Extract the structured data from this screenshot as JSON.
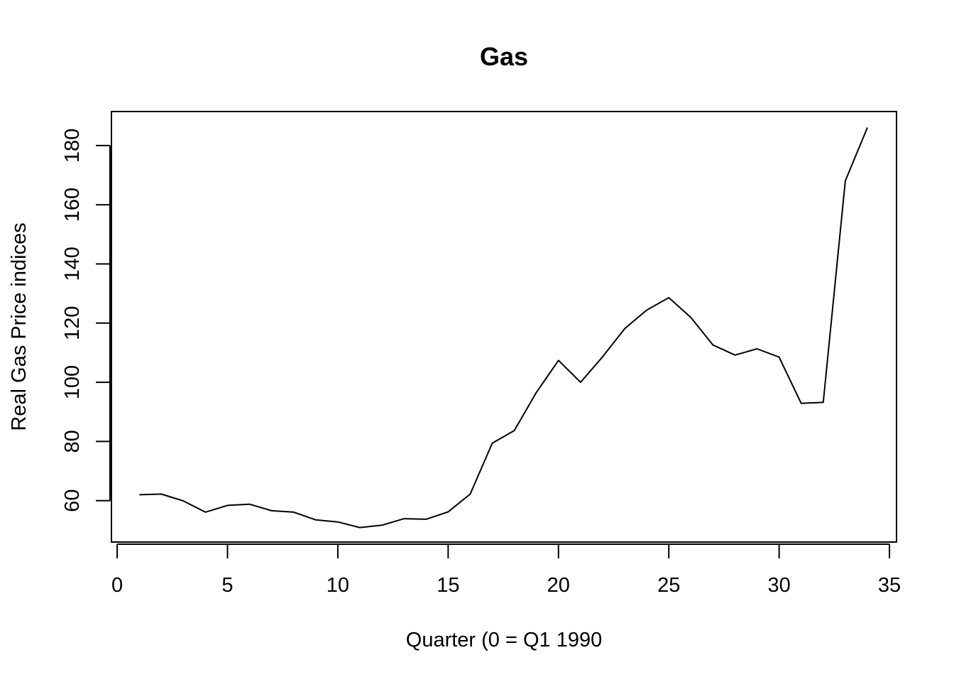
{
  "chart_data": {
    "type": "line",
    "title": "Gas",
    "xlabel": "Quarter (0 = Q1 1990",
    "ylabel": "Real Gas Price indices",
    "xlim": [
      -0.26,
      35.32
    ],
    "ylim": [
      46.0,
      191.5
    ],
    "xticks": [
      0,
      5,
      10,
      15,
      20,
      25,
      30,
      35
    ],
    "yticks": [
      60,
      80,
      100,
      120,
      140,
      160,
      180
    ],
    "grid": false,
    "legend": "none",
    "line_color": "#000000",
    "series": [
      {
        "x": [
          1,
          2,
          3,
          4,
          5,
          6,
          7,
          8,
          9,
          10,
          11,
          12,
          13,
          14,
          15,
          16,
          17,
          18,
          19,
          20,
          21,
          22,
          23,
          24,
          25,
          26,
          27,
          28,
          29,
          30,
          31,
          32,
          33,
          34
        ],
        "values": [
          62.0,
          62.2,
          59.9,
          56.1,
          58.4,
          58.8,
          56.6,
          56.1,
          53.5,
          52.8,
          50.9,
          51.7,
          53.9,
          53.7,
          56.2,
          62.2,
          79.4,
          83.7,
          96.6,
          107.4,
          100.0,
          108.6,
          118.1,
          124.4,
          128.6,
          121.9,
          112.6,
          109.2,
          111.3,
          108.5,
          92.9,
          93.2,
          168.1,
          186.1
        ]
      }
    ]
  }
}
